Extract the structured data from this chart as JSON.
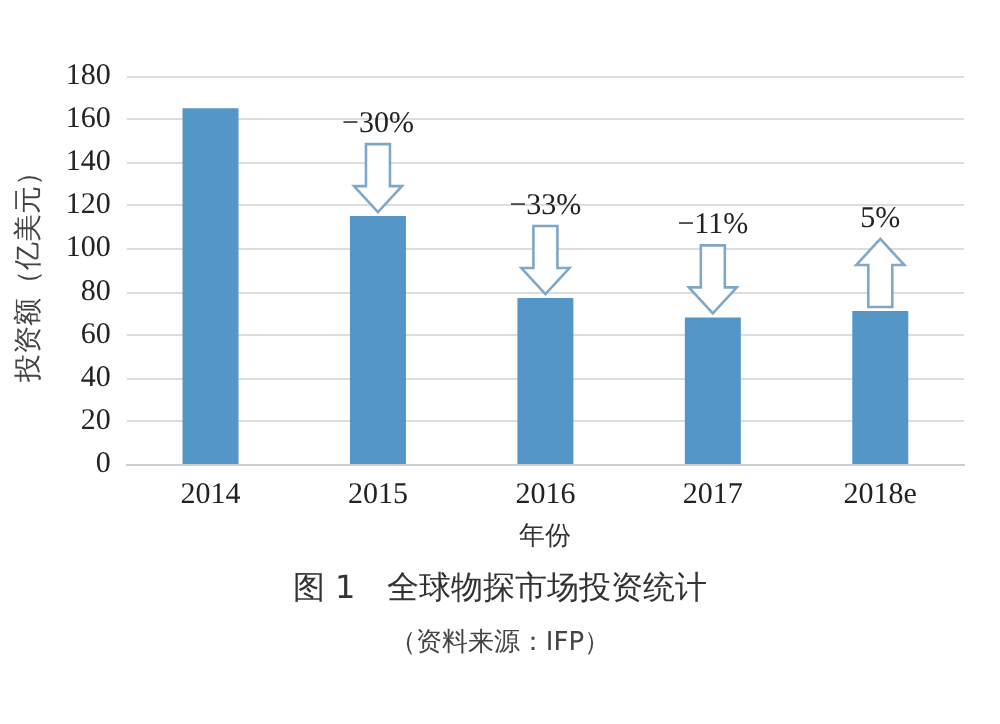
{
  "chart_data": {
    "type": "bar",
    "title": "图 1　全球物探市场投资统计",
    "xlabel": "年份",
    "ylabel": "投资额（亿美元）",
    "categories": [
      "2014",
      "2015",
      "2016",
      "2017",
      "2018e"
    ],
    "values": [
      165,
      115,
      77,
      68,
      71
    ],
    "color": "#5596c8",
    "ylim": [
      0,
      180
    ],
    "yticks": [
      0,
      20,
      40,
      60,
      80,
      100,
      120,
      140,
      160,
      180
    ],
    "grid": "y",
    "annotations": [
      {
        "text": "−30%",
        "x": "2015",
        "y": 115
      },
      {
        "text": "−33%",
        "x": "2016",
        "y": 77
      },
      {
        "text": "−11%",
        "x": "2017",
        "y": 68
      },
      {
        "text": "5%",
        "x": "2018e",
        "y": 71
      },
      "（资料来源：IFP）"
    ]
  }
}
